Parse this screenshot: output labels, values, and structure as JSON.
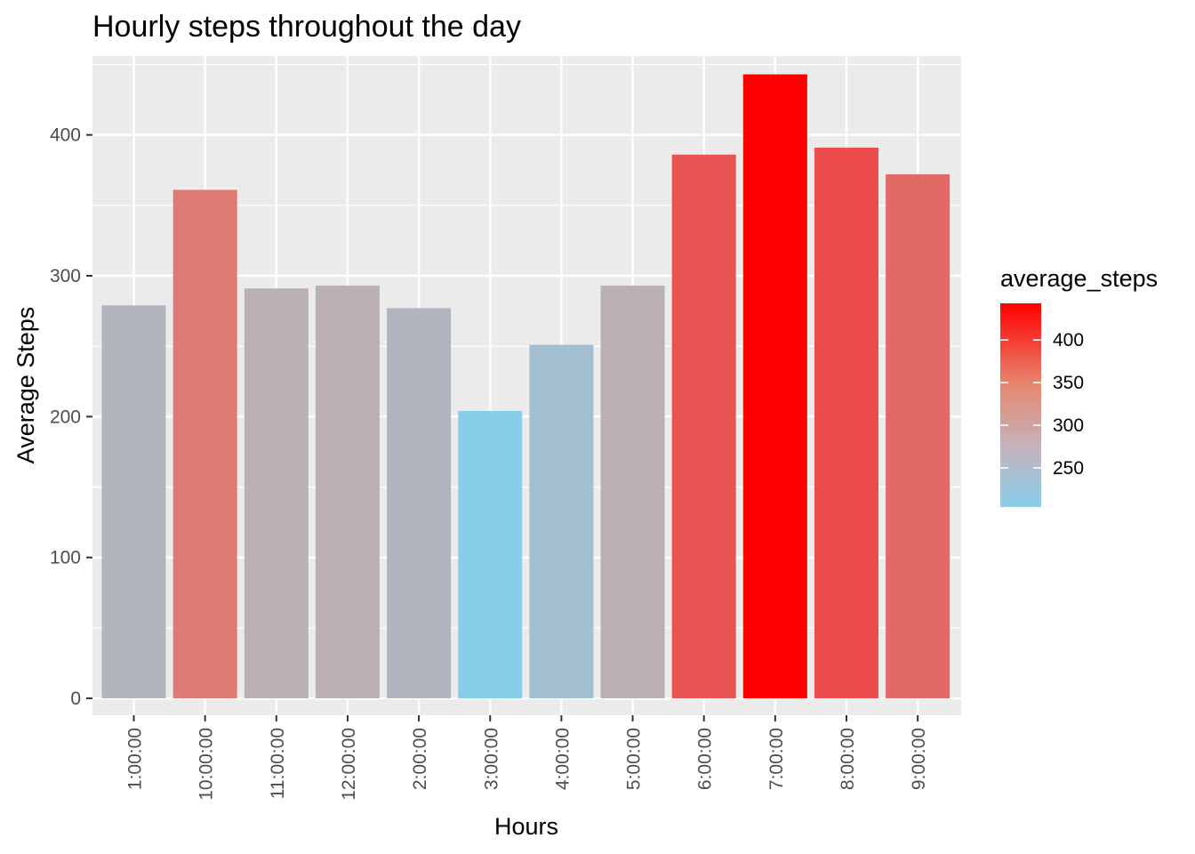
{
  "chart_data": {
    "type": "bar",
    "title": "Hourly steps throughout the day",
    "xlabel": "Hours",
    "ylabel": "Average Steps",
    "categories": [
      "1:00:00",
      "10:00:00",
      "11:00:00",
      "12:00:00",
      "2:00:00",
      "3:00:00",
      "4:00:00",
      "5:00:00",
      "6:00:00",
      "7:00:00",
      "8:00:00",
      "9:00:00"
    ],
    "values": [
      279,
      361,
      291,
      293,
      277,
      204,
      251,
      293,
      386,
      443,
      391,
      372
    ],
    "ylim": [
      -12,
      456
    ],
    "y_ticks": [
      0,
      100,
      200,
      300,
      400
    ],
    "y_tick_labels": [
      "0",
      "100",
      "200",
      "300",
      "400"
    ],
    "grid": true,
    "legend": {
      "title": "average_steps",
      "placement": "right",
      "type": "colorbar",
      "range": [
        204,
        443
      ],
      "ticks": [
        250,
        300,
        350,
        400
      ],
      "tick_labels": [
        "250",
        "300",
        "350",
        "400"
      ]
    },
    "colors": {
      "low": "#87ceeb",
      "mid": "#d3a29b",
      "high": "#ff0000",
      "panel_background": "#ebebeb",
      "grid": "#ffffff"
    }
  }
}
